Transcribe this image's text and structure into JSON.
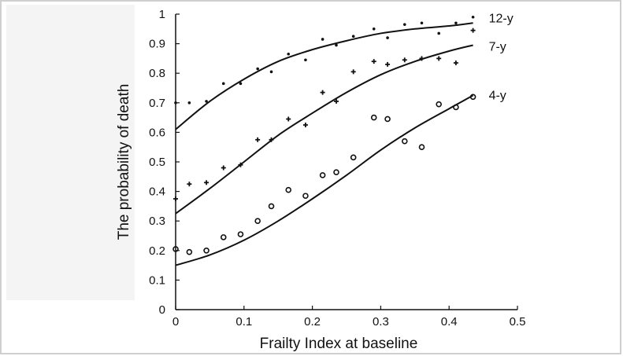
{
  "chart_data": {
    "type": "scatter",
    "title": "",
    "xlabel": "Frailty Index at baseline",
    "ylabel": "The probability of death",
    "xlim": [
      0,
      0.5
    ],
    "ylim": [
      0,
      1
    ],
    "xticks": [
      0,
      0.1,
      0.2,
      0.3,
      0.4,
      0.5
    ],
    "xtick_labels": [
      "0",
      "0.1",
      "0.2",
      "0.3",
      "0.4",
      "0.5"
    ],
    "yticks": [
      0,
      0.1,
      0.2,
      0.3,
      0.4,
      0.5,
      0.6,
      0.7,
      0.8,
      0.9,
      1
    ],
    "ytick_labels": [
      "0",
      "0.1",
      "0.2",
      "0.3",
      "0.4",
      "0.5",
      "0.6",
      "0.7",
      "0.8",
      "0.9",
      "1"
    ],
    "grid": false,
    "legend": "direct labels at right end of curves",
    "series": [
      {
        "name": "12-y",
        "marker": "dot",
        "points": [
          [
            0.0,
            0.7
          ],
          [
            0.02,
            0.7
          ],
          [
            0.045,
            0.705
          ],
          [
            0.07,
            0.765
          ],
          [
            0.095,
            0.765
          ],
          [
            0.12,
            0.815
          ],
          [
            0.14,
            0.805
          ],
          [
            0.165,
            0.865
          ],
          [
            0.19,
            0.845
          ],
          [
            0.215,
            0.915
          ],
          [
            0.235,
            0.895
          ],
          [
            0.26,
            0.925
          ],
          [
            0.29,
            0.95
          ],
          [
            0.31,
            0.92
          ],
          [
            0.335,
            0.965
          ],
          [
            0.36,
            0.97
          ],
          [
            0.385,
            0.935
          ],
          [
            0.41,
            0.97
          ],
          [
            0.435,
            0.99
          ]
        ],
        "curve": [
          [
            0.0,
            0.61
          ],
          [
            0.05,
            0.705
          ],
          [
            0.1,
            0.78
          ],
          [
            0.15,
            0.84
          ],
          [
            0.2,
            0.88
          ],
          [
            0.25,
            0.91
          ],
          [
            0.3,
            0.935
          ],
          [
            0.35,
            0.95
          ],
          [
            0.4,
            0.96
          ],
          [
            0.435,
            0.97
          ]
        ]
      },
      {
        "name": "7-y",
        "marker": "plus",
        "points": [
          [
            0.0,
            0.375
          ],
          [
            0.02,
            0.425
          ],
          [
            0.045,
            0.43
          ],
          [
            0.07,
            0.48
          ],
          [
            0.095,
            0.49
          ],
          [
            0.12,
            0.575
          ],
          [
            0.14,
            0.575
          ],
          [
            0.165,
            0.645
          ],
          [
            0.19,
            0.625
          ],
          [
            0.215,
            0.735
          ],
          [
            0.235,
            0.705
          ],
          [
            0.26,
            0.805
          ],
          [
            0.29,
            0.84
          ],
          [
            0.31,
            0.83
          ],
          [
            0.335,
            0.845
          ],
          [
            0.36,
            0.85
          ],
          [
            0.385,
            0.85
          ],
          [
            0.41,
            0.835
          ],
          [
            0.435,
            0.945
          ]
        ],
        "curve": [
          [
            0.0,
            0.325
          ],
          [
            0.05,
            0.41
          ],
          [
            0.1,
            0.5
          ],
          [
            0.15,
            0.59
          ],
          [
            0.2,
            0.665
          ],
          [
            0.25,
            0.735
          ],
          [
            0.3,
            0.795
          ],
          [
            0.35,
            0.84
          ],
          [
            0.4,
            0.875
          ],
          [
            0.435,
            0.895
          ]
        ]
      },
      {
        "name": "4-y",
        "marker": "circle",
        "points": [
          [
            0.0,
            0.205
          ],
          [
            0.02,
            0.195
          ],
          [
            0.045,
            0.2
          ],
          [
            0.07,
            0.245
          ],
          [
            0.095,
            0.255
          ],
          [
            0.12,
            0.3
          ],
          [
            0.14,
            0.35
          ],
          [
            0.165,
            0.405
          ],
          [
            0.19,
            0.385
          ],
          [
            0.215,
            0.455
          ],
          [
            0.235,
            0.465
          ],
          [
            0.26,
            0.515
          ],
          [
            0.29,
            0.65
          ],
          [
            0.31,
            0.645
          ],
          [
            0.335,
            0.57
          ],
          [
            0.36,
            0.55
          ],
          [
            0.385,
            0.695
          ],
          [
            0.41,
            0.685
          ],
          [
            0.435,
            0.72
          ]
        ],
        "curve": [
          [
            0.0,
            0.15
          ],
          [
            0.05,
            0.185
          ],
          [
            0.1,
            0.235
          ],
          [
            0.15,
            0.3
          ],
          [
            0.2,
            0.375
          ],
          [
            0.25,
            0.455
          ],
          [
            0.3,
            0.54
          ],
          [
            0.35,
            0.615
          ],
          [
            0.4,
            0.68
          ],
          [
            0.435,
            0.725
          ]
        ]
      }
    ]
  }
}
